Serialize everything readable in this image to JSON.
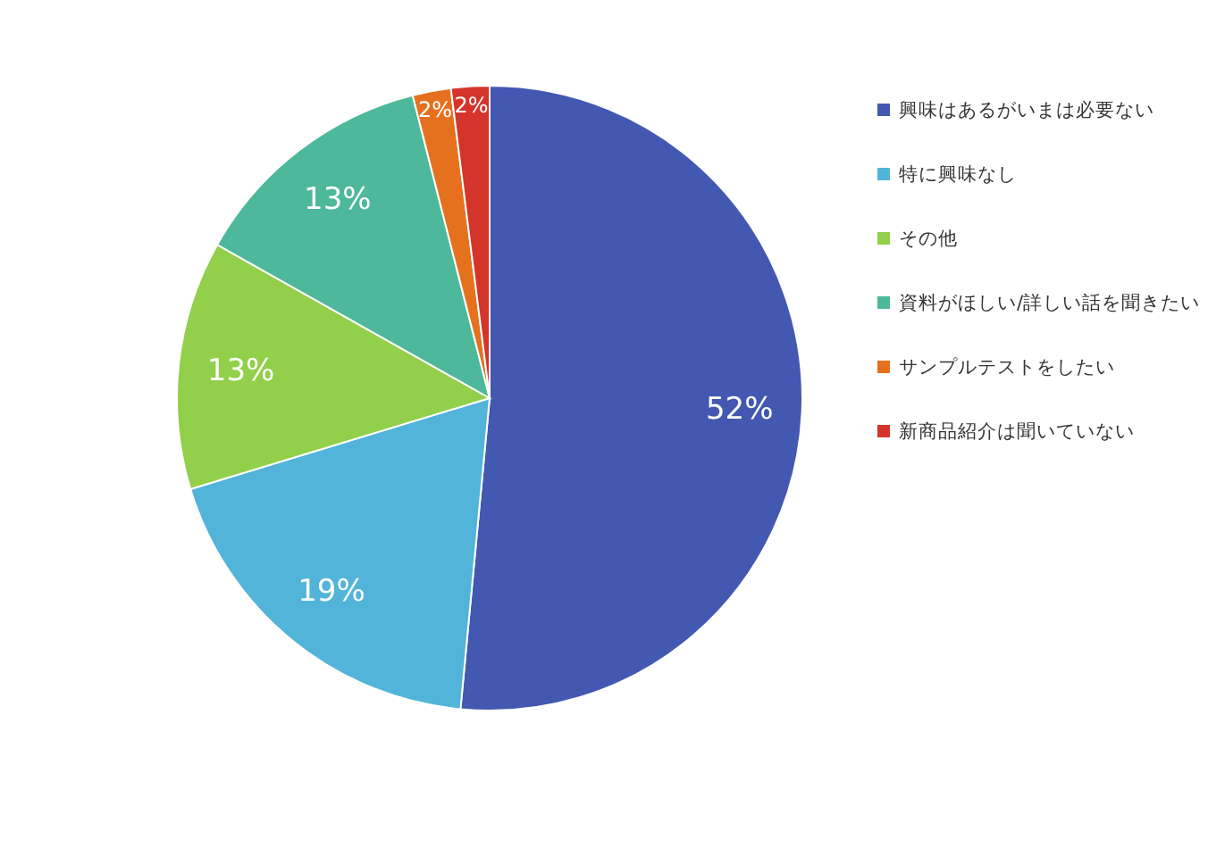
{
  "chart_data": {
    "type": "pie",
    "categories": [
      "興味はあるがいまは必要ない",
      "特に興味なし",
      "その他",
      "資料がほしい/詳しい話を聞きたい",
      "サンプルテストをしたい",
      "新商品紹介は聞いていない"
    ],
    "values": [
      52,
      19,
      13,
      13,
      2,
      2
    ],
    "colors": [
      "#4358b0",
      "#52b4d9",
      "#92cf4a",
      "#4db89a",
      "#e5711f",
      "#d4342a"
    ],
    "value_labels": [
      "52%",
      "19%",
      "13%",
      "13%",
      "2%",
      "2%"
    ],
    "legend": "right"
  }
}
